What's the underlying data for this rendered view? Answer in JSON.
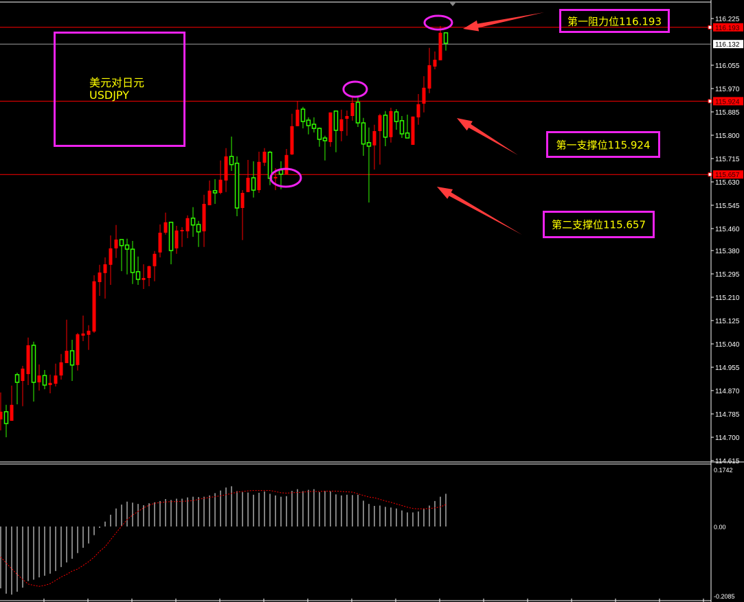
{
  "chart_data": [
    {
      "type": "candlestick",
      "symbol_label": {
        "cn": "美元对日元",
        "en": "USDJPY"
      },
      "ylim": [
        114.615,
        116.225
      ],
      "yticks": [
        "116.225",
        "116.055",
        "115.970",
        "115.885",
        "115.800",
        "115.715",
        "115.630",
        "115.545",
        "115.460",
        "115.380",
        "115.295",
        "115.210",
        "115.125",
        "115.040",
        "114.955",
        "114.870",
        "114.785",
        "114.700",
        "114.615"
      ],
      "current_price": "116.132",
      "up_color": "#ff0000",
      "down_color": "#33ff00",
      "levels": [
        {
          "value": 116.193,
          "label": "116.193",
          "annotation": "第一阻力位116.193"
        },
        {
          "value": 115.924,
          "label": "115.924",
          "annotation": "第一支撑位115.924"
        },
        {
          "value": 115.657,
          "label": "115.657",
          "annotation": "第二支撑位115.657"
        }
      ],
      "ohlc": [
        [
          114.765,
          114.863,
          114.725,
          114.793
        ],
        [
          114.793,
          114.818,
          114.7,
          114.75
        ],
        [
          114.76,
          114.888,
          114.76,
          114.818
        ],
        [
          114.928,
          114.935,
          114.82,
          114.9
        ],
        [
          114.905,
          114.96,
          114.813,
          114.95
        ],
        [
          114.93,
          115.063,
          114.89,
          115.035
        ],
        [
          115.035,
          115.048,
          114.83,
          114.9
        ],
        [
          114.9,
          114.965,
          114.87,
          114.925
        ],
        [
          114.925,
          114.945,
          114.875,
          114.89
        ],
        [
          114.89,
          114.928,
          114.86,
          114.898
        ],
        [
          114.895,
          114.968,
          114.885,
          114.925
        ],
        [
          114.925,
          115.003,
          114.91,
          114.973
        ],
        [
          114.97,
          115.128,
          114.97,
          115.015
        ],
        [
          115.015,
          115.055,
          114.905,
          114.963
        ],
        [
          114.963,
          115.08,
          114.943,
          115.075
        ],
        [
          115.07,
          115.143,
          115.05,
          115.078
        ],
        [
          115.073,
          115.108,
          115.018,
          115.088
        ],
        [
          115.085,
          115.29,
          115.08,
          115.268
        ],
        [
          115.265,
          115.328,
          115.215,
          115.3
        ],
        [
          115.298,
          115.355,
          115.205,
          115.33
        ],
        [
          115.328,
          115.435,
          115.255,
          115.388
        ],
        [
          115.388,
          115.473,
          115.353,
          115.42
        ],
        [
          115.42,
          115.42,
          115.305,
          115.398
        ],
        [
          115.4,
          115.423,
          115.293,
          115.385
        ],
        [
          115.385,
          115.415,
          115.258,
          115.3
        ],
        [
          115.303,
          115.358,
          115.255,
          115.275
        ],
        [
          115.273,
          115.33,
          115.24,
          115.28
        ],
        [
          115.28,
          115.325,
          115.25,
          115.323
        ],
        [
          115.323,
          115.378,
          115.268,
          115.368
        ],
        [
          115.373,
          115.475,
          115.355,
          115.445
        ],
        [
          115.445,
          115.518,
          115.438,
          115.483
        ],
        [
          115.483,
          115.485,
          115.33,
          115.38
        ],
        [
          115.388,
          115.47,
          115.368,
          115.453
        ],
        [
          115.45,
          115.465,
          115.393,
          115.455
        ],
        [
          115.45,
          115.508,
          115.425,
          115.498
        ],
        [
          115.498,
          115.538,
          115.43,
          115.473
        ],
        [
          115.475,
          115.488,
          115.393,
          115.448
        ],
        [
          115.45,
          115.583,
          115.393,
          115.55
        ],
        [
          115.545,
          115.635,
          115.545,
          115.598
        ],
        [
          115.598,
          115.64,
          115.55,
          115.59
        ],
        [
          115.59,
          115.708,
          115.585,
          115.638
        ],
        [
          115.635,
          115.753,
          115.593,
          115.723
        ],
        [
          115.723,
          115.795,
          115.67,
          115.693
        ],
        [
          115.698,
          115.723,
          115.505,
          115.535
        ],
        [
          115.535,
          115.6,
          115.418,
          115.59
        ],
        [
          115.593,
          115.71,
          115.593,
          115.645
        ],
        [
          115.645,
          115.705,
          115.573,
          115.6
        ],
        [
          115.6,
          115.74,
          115.59,
          115.703
        ],
        [
          115.7,
          115.753,
          115.688,
          115.74
        ],
        [
          115.738,
          115.743,
          115.618,
          115.643
        ],
        [
          115.643,
          115.68,
          115.6,
          115.648
        ],
        [
          115.673,
          115.705,
          115.603,
          115.658
        ],
        [
          115.658,
          115.75,
          115.658,
          115.728
        ],
        [
          115.73,
          115.878,
          115.728,
          115.833
        ],
        [
          115.833,
          115.925,
          115.833,
          115.893
        ],
        [
          115.895,
          115.903,
          115.825,
          115.85
        ],
        [
          115.855,
          115.865,
          115.803,
          115.835
        ],
        [
          115.84,
          115.865,
          115.81,
          115.825
        ],
        [
          115.825,
          115.828,
          115.758,
          115.785
        ],
        [
          115.79,
          115.798,
          115.708,
          115.78
        ],
        [
          115.775,
          115.883,
          115.758,
          115.883
        ],
        [
          115.888,
          115.888,
          115.738,
          115.818
        ],
        [
          115.815,
          115.893,
          115.778,
          115.858
        ],
        [
          115.86,
          115.89,
          115.798,
          115.87
        ],
        [
          115.87,
          115.938,
          115.853,
          115.918
        ],
        [
          115.92,
          115.938,
          115.83,
          115.845
        ],
        [
          115.845,
          115.863,
          115.725,
          115.768
        ],
        [
          115.773,
          115.828,
          115.555,
          115.76
        ],
        [
          115.763,
          115.838,
          115.675,
          115.815
        ],
        [
          115.815,
          115.878,
          115.693,
          115.873
        ],
        [
          115.873,
          115.888,
          115.76,
          115.793
        ],
        [
          115.793,
          115.9,
          115.773,
          115.888
        ],
        [
          115.885,
          115.895,
          115.82,
          115.85
        ],
        [
          115.853,
          115.87,
          115.79,
          115.805
        ],
        [
          115.808,
          115.875,
          115.79,
          115.79
        ],
        [
          115.765,
          115.868,
          115.765,
          115.868
        ],
        [
          115.865,
          115.95,
          115.838,
          115.913
        ],
        [
          115.915,
          116.015,
          115.883,
          115.973
        ],
        [
          115.97,
          116.118,
          115.953,
          116.055
        ],
        [
          116.05,
          116.105,
          116.04,
          116.075
        ],
        [
          116.073,
          116.198,
          116.073,
          116.173
        ],
        [
          116.173,
          116.173,
          116.108,
          116.135
        ]
      ]
    },
    {
      "type": "bar+line",
      "ylim": [
        -0.2085,
        0.1742
      ],
      "yticks": [
        "0.1742",
        "0.00",
        "-0.2085"
      ],
      "bar_color": "#ffffff",
      "line_color": "#ff0000",
      "histogram": [
        -0.186,
        -0.202,
        -0.205,
        -0.196,
        -0.184,
        -0.164,
        -0.16,
        -0.153,
        -0.148,
        -0.142,
        -0.134,
        -0.122,
        -0.108,
        -0.097,
        -0.08,
        -0.064,
        -0.051,
        -0.026,
        -0.004,
        0.015,
        0.036,
        0.055,
        0.067,
        0.076,
        0.073,
        0.069,
        0.065,
        0.071,
        0.074,
        0.078,
        0.084,
        0.081,
        0.085,
        0.085,
        0.089,
        0.091,
        0.09,
        0.091,
        0.095,
        0.102,
        0.11,
        0.119,
        0.123,
        0.108,
        0.105,
        0.104,
        0.097,
        0.103,
        0.107,
        0.1,
        0.095,
        0.091,
        0.093,
        0.109,
        0.114,
        0.108,
        0.112,
        0.114,
        0.105,
        0.109,
        0.107,
        0.098,
        0.095,
        0.097,
        0.096,
        0.097,
        0.079,
        0.069,
        0.063,
        0.064,
        0.06,
        0.058,
        0.055,
        0.049,
        0.043,
        0.043,
        0.046,
        0.055,
        0.064,
        0.078,
        0.091,
        0.1
      ],
      "signal": [
        -0.092,
        -0.11,
        -0.127,
        -0.144,
        -0.159,
        -0.173,
        -0.177,
        -0.18,
        -0.177,
        -0.172,
        -0.162,
        -0.152,
        -0.144,
        -0.134,
        -0.128,
        -0.117,
        -0.106,
        -0.092,
        -0.075,
        -0.061,
        -0.04,
        -0.019,
        0.001,
        0.021,
        0.035,
        0.046,
        0.057,
        0.065,
        0.071,
        0.073,
        0.075,
        0.076,
        0.076,
        0.077,
        0.078,
        0.079,
        0.083,
        0.086,
        0.089,
        0.091,
        0.094,
        0.097,
        0.101,
        0.105,
        0.107,
        0.109,
        0.11,
        0.11,
        0.11,
        0.11,
        0.107,
        0.103,
        0.102,
        0.103,
        0.104,
        0.105,
        0.107,
        0.107,
        0.107,
        0.108,
        0.108,
        0.108,
        0.107,
        0.106,
        0.105,
        0.1,
        0.095,
        0.09,
        0.088,
        0.083,
        0.078,
        0.074,
        0.069,
        0.064,
        0.059,
        0.055,
        0.054,
        0.054,
        0.055,
        0.057,
        0.06,
        0.067
      ]
    }
  ]
}
